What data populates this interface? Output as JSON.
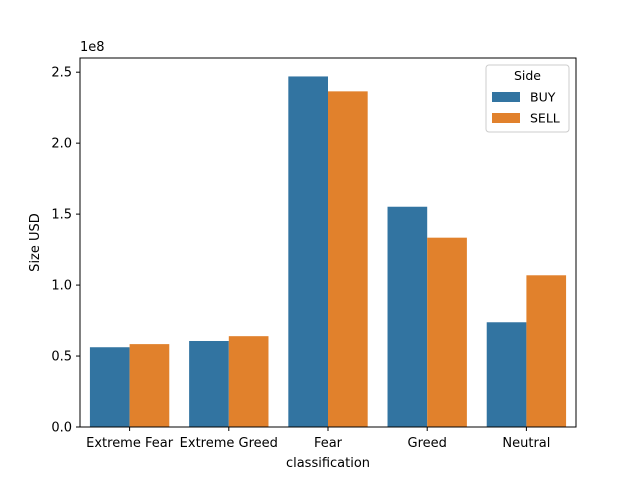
{
  "chart_data": {
    "type": "bar",
    "categories": [
      "Extreme Fear",
      "Extreme Greed",
      "Fear",
      "Greed",
      "Neutral"
    ],
    "series": [
      {
        "name": "BUY",
        "color": "#3274a1",
        "values": [
          56200000,
          60600000,
          247000000,
          155200000,
          73800000
        ]
      },
      {
        "name": "SELL",
        "color": "#e1812c",
        "values": [
          58400000,
          64000000,
          236500000,
          133400000,
          106900000
        ]
      }
    ],
    "xlabel": "classification",
    "ylabel": "Size USD",
    "y_offset_label": "1e8",
    "ylim": [
      0,
      260000000
    ],
    "y_ticks": [
      0,
      50000000,
      100000000,
      150000000,
      200000000,
      250000000
    ],
    "y_tick_labels": [
      "0.0",
      "0.5",
      "1.0",
      "1.5",
      "2.0",
      "2.5"
    ],
    "grid": false,
    "legend": {
      "title": "Side",
      "placement": "top-right",
      "entries": [
        "BUY",
        "SELL"
      ]
    }
  }
}
